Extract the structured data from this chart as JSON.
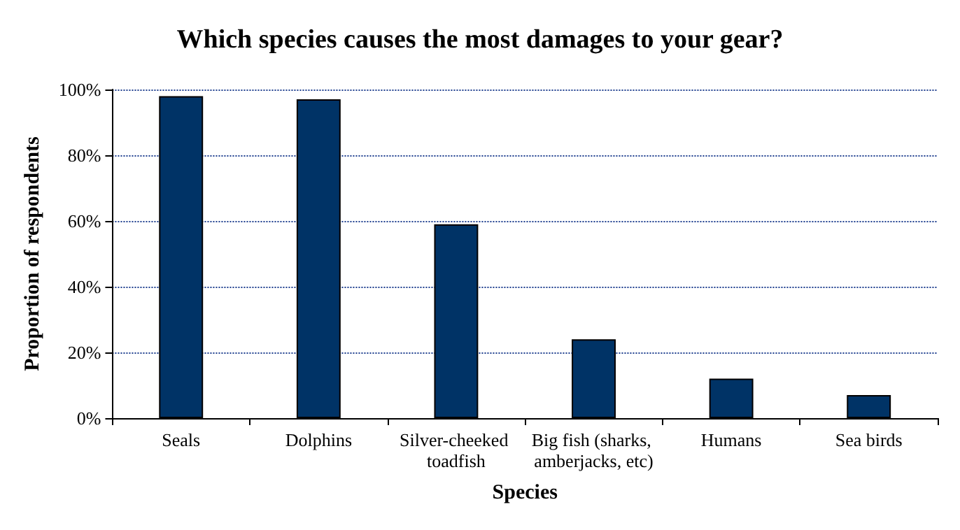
{
  "chart_data": {
    "type": "bar",
    "title": "Which species causes the most damages to your gear?",
    "xlabel": "Species",
    "ylabel": "Proportion of respondents",
    "categories": [
      "Seals",
      "Dolphins",
      "Silver-cheeked toadfish",
      "Big fish (sharks, amberjacks, etc)",
      "Humans",
      "Sea birds"
    ],
    "values": [
      98,
      97,
      59,
      24,
      12,
      7
    ],
    "color": "#003366",
    "ylim": [
      0,
      100
    ],
    "yticks": [
      {
        "value": 0,
        "label": "0%"
      },
      {
        "value": 20,
        "label": "20%"
      },
      {
        "value": 40,
        "label": "40%"
      },
      {
        "value": 60,
        "label": "60%"
      },
      {
        "value": 80,
        "label": "80%"
      },
      {
        "value": 100,
        "label": "100%"
      }
    ],
    "grid": "y"
  }
}
